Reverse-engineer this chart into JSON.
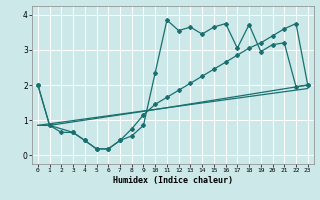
{
  "xlabel": "Humidex (Indice chaleur)",
  "bg_color": "#cce8e8",
  "grid_color": "#ffffff",
  "line_color": "#1a7070",
  "xlim": [
    -0.5,
    23.5
  ],
  "ylim": [
    -0.25,
    4.25
  ],
  "yticks": [
    0,
    1,
    2,
    3,
    4
  ],
  "xticks": [
    0,
    1,
    2,
    3,
    4,
    5,
    6,
    7,
    8,
    9,
    10,
    11,
    12,
    13,
    14,
    15,
    16,
    17,
    18,
    19,
    20,
    21,
    22,
    23
  ],
  "line1_x": [
    0,
    1,
    2,
    3,
    4,
    5,
    6,
    7,
    8,
    9,
    10,
    11,
    12,
    13,
    14,
    15,
    16,
    17,
    18,
    19,
    20,
    21,
    22,
    23
  ],
  "line1_y": [
    2.0,
    0.85,
    0.65,
    0.65,
    0.42,
    0.18,
    0.18,
    0.42,
    0.55,
    0.85,
    2.35,
    3.85,
    3.55,
    3.65,
    3.45,
    3.65,
    3.75,
    3.05,
    3.72,
    2.95,
    3.15,
    3.2,
    1.95,
    2.0
  ],
  "line2_x": [
    0,
    1,
    3,
    4,
    5,
    6,
    7,
    8,
    9,
    10,
    11,
    12,
    13,
    14,
    15,
    16,
    17,
    18,
    19,
    20,
    21,
    22,
    23
  ],
  "line2_y": [
    2.0,
    0.85,
    0.65,
    0.42,
    0.18,
    0.18,
    0.42,
    0.75,
    1.15,
    1.45,
    1.65,
    1.85,
    2.05,
    2.25,
    2.45,
    2.65,
    2.85,
    3.05,
    3.2,
    3.4,
    3.6,
    3.75,
    2.0
  ],
  "line3_x": [
    0,
    1,
    2,
    3,
    4,
    5,
    6,
    7,
    8,
    9,
    10,
    23
  ],
  "line3_y": [
    0.85,
    0.85,
    0.9,
    0.95,
    1.0,
    1.05,
    1.1,
    1.15,
    1.2,
    1.25,
    1.3,
    2.0
  ],
  "line4_x": [
    0,
    23
  ],
  "line4_y": [
    0.85,
    1.9
  ]
}
